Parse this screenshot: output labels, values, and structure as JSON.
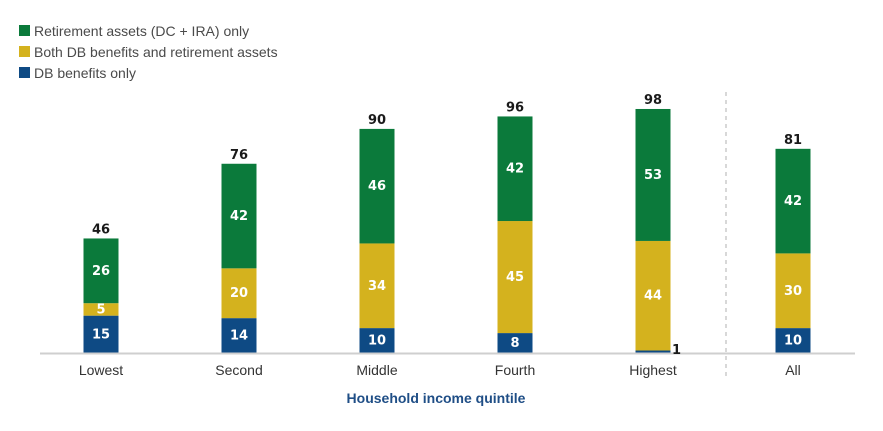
{
  "chart_data": {
    "type": "bar",
    "stacked": true,
    "title": "",
    "xlabel": "Household income quintile",
    "ylabel": "",
    "ylim": [
      0,
      100
    ],
    "grid": false,
    "legend_position": "top-left",
    "categories": [
      "Lowest",
      "Second",
      "Middle",
      "Fourth",
      "Highest",
      "All"
    ],
    "totals": [
      46,
      76,
      90,
      96,
      98,
      81
    ],
    "series": [
      {
        "name": "DB benefits only",
        "color": "#0e4a84",
        "label_color": "#ffffff",
        "values": [
          15,
          14,
          10,
          8,
          1,
          10
        ]
      },
      {
        "name": "Both DB benefits and retirement assets",
        "color": "#d4b21e",
        "label_color": "#ffffff",
        "values": [
          5,
          20,
          34,
          45,
          44,
          30
        ]
      },
      {
        "name": "Retirement assets (DC + IRA) only",
        "color": "#0b7a3b",
        "label_color": "#ffffff",
        "values": [
          26,
          42,
          46,
          42,
          53,
          42
        ]
      }
    ],
    "legend_order": [
      2,
      1,
      0
    ],
    "separator_before_category": "All"
  }
}
